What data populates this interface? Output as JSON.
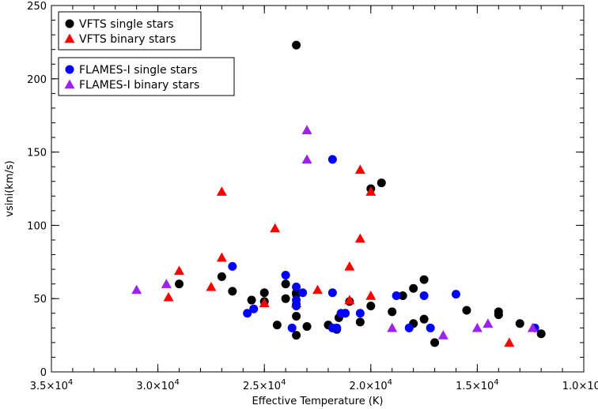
{
  "chart_data": {
    "type": "scatter",
    "xlabel": "Effective Temperature (K)",
    "ylabel": "vsini(km/s)",
    "xlim": [
      35000,
      10000
    ],
    "ylim": [
      0,
      250
    ],
    "x_ticks": [
      {
        "value": 35000,
        "mantissa": "3.5",
        "exp": "4"
      },
      {
        "value": 30000,
        "mantissa": "3.0",
        "exp": "4"
      },
      {
        "value": 25000,
        "mantissa": "2.5",
        "exp": "4"
      },
      {
        "value": 20000,
        "mantissa": "2.0",
        "exp": "4"
      },
      {
        "value": 15000,
        "mantissa": "1.5",
        "exp": "4"
      },
      {
        "value": 10000,
        "mantissa": "1.0",
        "exp": "4"
      }
    ],
    "y_ticks": [
      0,
      50,
      100,
      150,
      200,
      250
    ],
    "x_minor_step": 1000,
    "y_minor_step": 10,
    "grid": false,
    "legend_groups": [
      {
        "position": "top-left",
        "series": [
          0,
          1
        ]
      },
      {
        "position": "top-left",
        "series": [
          2,
          3
        ]
      }
    ],
    "series": [
      {
        "name": "VFTS single stars",
        "marker": "circle",
        "color": "#000000",
        "points": [
          [
            29000,
            60
          ],
          [
            27000,
            65
          ],
          [
            26500,
            55
          ],
          [
            25600,
            49
          ],
          [
            25000,
            54
          ],
          [
            25000,
            48
          ],
          [
            24400,
            32
          ],
          [
            24000,
            60
          ],
          [
            24000,
            50
          ],
          [
            23500,
            54
          ],
          [
            23500,
            53
          ],
          [
            23500,
            46
          ],
          [
            23500,
            38
          ],
          [
            23500,
            25
          ],
          [
            23500,
            223
          ],
          [
            23000,
            31
          ],
          [
            22000,
            32
          ],
          [
            21600,
            29
          ],
          [
            21500,
            37
          ],
          [
            21200,
            40
          ],
          [
            21000,
            48
          ],
          [
            20500,
            34
          ],
          [
            20000,
            45
          ],
          [
            20000,
            125
          ],
          [
            19500,
            129
          ],
          [
            19000,
            41
          ],
          [
            18500,
            52
          ],
          [
            18000,
            57
          ],
          [
            18000,
            33
          ],
          [
            17500,
            36
          ],
          [
            17500,
            63
          ],
          [
            17000,
            20
          ],
          [
            15500,
            42
          ],
          [
            14000,
            41
          ],
          [
            14000,
            39
          ],
          [
            13000,
            33
          ],
          [
            12000,
            26
          ]
        ]
      },
      {
        "name": "VFTS binary stars",
        "marker": "triangle",
        "color": "#ff0000",
        "points": [
          [
            29000,
            69
          ],
          [
            29500,
            51
          ],
          [
            27500,
            58
          ],
          [
            27000,
            123
          ],
          [
            27000,
            78
          ],
          [
            25000,
            47
          ],
          [
            24500,
            98
          ],
          [
            23500,
            47
          ],
          [
            22500,
            56
          ],
          [
            21000,
            72
          ],
          [
            21000,
            49
          ],
          [
            20500,
            138
          ],
          [
            20500,
            91
          ],
          [
            20000,
            123
          ],
          [
            20000,
            52
          ],
          [
            13500,
            20
          ]
        ]
      },
      {
        "name": "FLAMES-I single stars",
        "marker": "circle",
        "color": "#0000ff",
        "points": [
          [
            26500,
            72
          ],
          [
            25800,
            40
          ],
          [
            25500,
            43
          ],
          [
            24000,
            66
          ],
          [
            23700,
            30
          ],
          [
            23500,
            58
          ],
          [
            23500,
            49
          ],
          [
            23500,
            45
          ],
          [
            23200,
            54
          ],
          [
            21800,
            145
          ],
          [
            21800,
            54
          ],
          [
            21800,
            30
          ],
          [
            21600,
            30
          ],
          [
            21400,
            40
          ],
          [
            21200,
            40
          ],
          [
            20500,
            40
          ],
          [
            18800,
            52
          ],
          [
            18200,
            30
          ],
          [
            17500,
            52
          ],
          [
            17200,
            30
          ],
          [
            16000,
            53
          ],
          [
            12300,
            30
          ]
        ]
      },
      {
        "name": "FLAMES-I binary stars",
        "marker": "triangle",
        "color": "#a020f0",
        "points": [
          [
            31000,
            56
          ],
          [
            29600,
            60
          ],
          [
            23000,
            165
          ],
          [
            23000,
            145
          ],
          [
            19000,
            30
          ],
          [
            16600,
            25
          ],
          [
            15000,
            30
          ],
          [
            14500,
            33
          ],
          [
            12400,
            30
          ]
        ]
      }
    ]
  }
}
